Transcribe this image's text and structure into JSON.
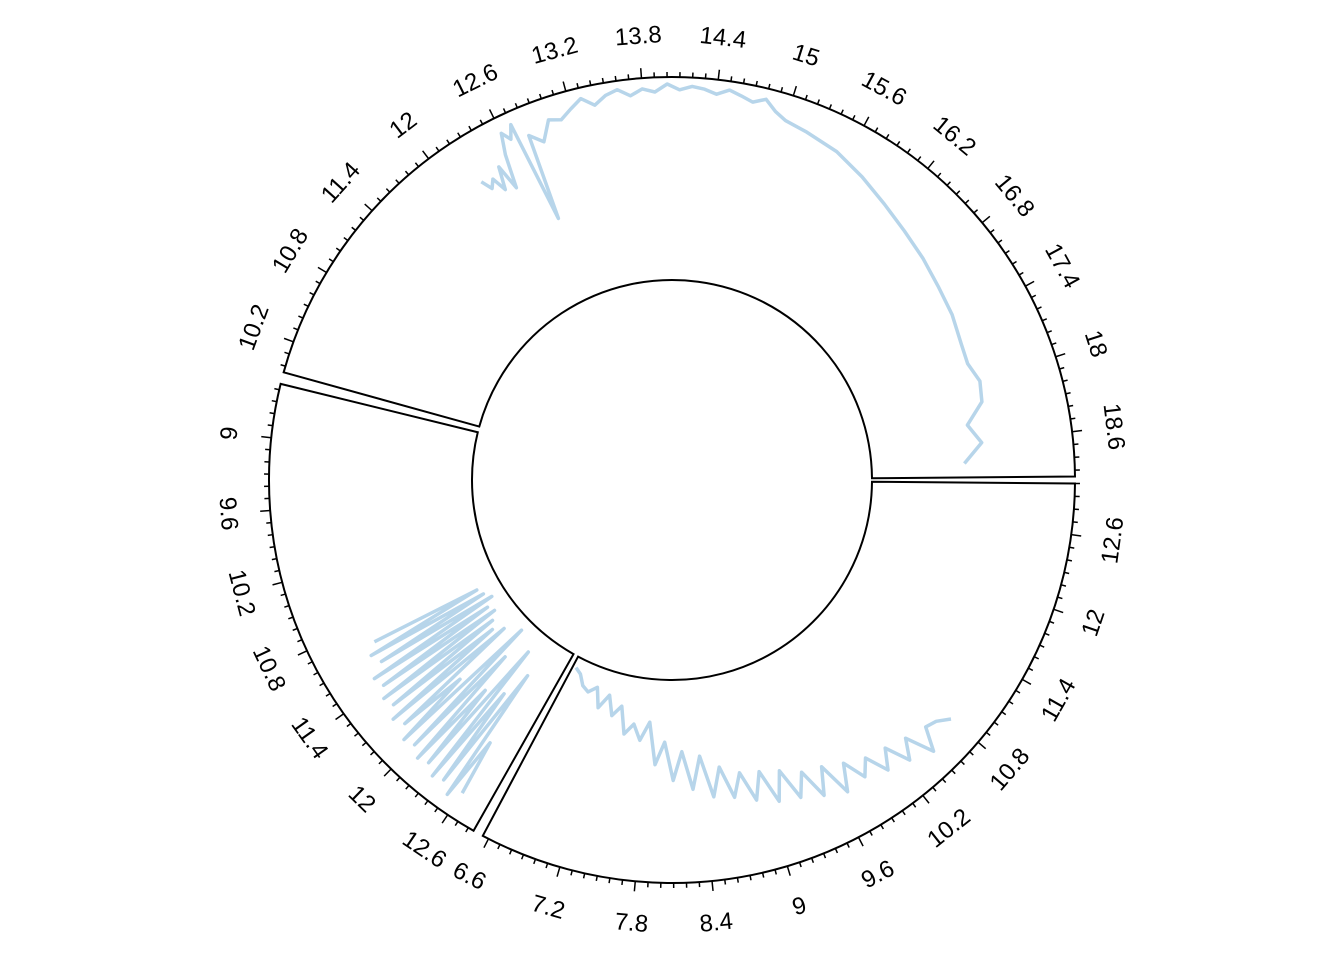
{
  "chart_data": {
    "type": "circos-line",
    "title": "",
    "grid": false,
    "legend": "none",
    "colors": {
      "line": "#b7d5ea",
      "border": "#000000",
      "background": "#ffffff"
    },
    "sectors": [
      {
        "name": "",
        "xlim": [
          9.95,
          18.95
        ],
        "direction": "clockwise",
        "tick_labels": [
          "10.2",
          "10.8",
          "11.4",
          "12",
          "12.6",
          "13.2",
          "13.8",
          "14.4",
          "15",
          "15.6",
          "16.2",
          "16.8",
          "17.4",
          "18",
          "18.6"
        ],
        "ylim": [
          0,
          1
        ],
        "x": [
          12.25,
          12.3,
          12.35,
          12.4,
          12.45,
          12.5,
          12.55,
          12.6,
          12.65,
          12.7,
          12.75,
          12.8,
          12.9,
          13.0,
          13.1,
          13.2,
          13.3,
          13.4,
          13.5,
          13.6,
          13.7,
          13.8,
          13.9,
          14.0,
          14.1,
          14.2,
          14.3,
          14.4,
          14.5,
          14.6,
          14.7,
          14.8,
          14.9,
          15.0,
          15.2,
          15.5,
          15.8,
          16.1,
          16.4,
          16.7,
          17.0,
          17.3,
          17.6,
          17.8,
          18.0,
          18.2,
          18.4,
          18.6,
          18.8
        ],
        "y": [
          0.78,
          0.72,
          0.76,
          0.68,
          0.8,
          0.66,
          0.84,
          0.95,
          0.9,
          0.97,
          0.42,
          0.88,
          0.82,
          0.92,
          0.9,
          0.94,
          0.98,
          0.93,
          0.97,
          0.99,
          0.95,
          0.98,
          0.96,
          1.0,
          0.97,
          0.99,
          0.98,
          0.96,
          0.99,
          0.97,
          0.95,
          0.98,
          0.93,
          0.9,
          0.88,
          0.85,
          0.8,
          0.75,
          0.71,
          0.68,
          0.65,
          0.63,
          0.6,
          0.59,
          0.62,
          0.6,
          0.5,
          0.56,
          0.46
        ]
      },
      {
        "name": "",
        "xlim": [
          6.55,
          13.0
        ],
        "direction": "counterclockwise",
        "tick_labels": [
          "6.6",
          "7.2",
          "7.8",
          "8.4",
          "9",
          "9.6",
          "10.2",
          "10.8",
          "11.4",
          "12",
          "12.6"
        ],
        "ylim": [
          0,
          1
        ],
        "x": [
          6.6,
          6.7,
          6.8,
          6.9,
          7.0,
          7.1,
          7.2,
          7.3,
          7.4,
          7.5,
          7.6,
          7.7,
          7.8,
          7.9,
          8.0,
          8.1,
          8.2,
          8.3,
          8.4,
          8.5,
          8.6,
          8.7,
          8.8,
          8.9,
          9.0,
          9.1,
          9.2,
          9.3,
          9.4,
          9.5,
          9.6,
          9.7,
          9.8,
          9.9,
          10.0,
          10.1,
          10.2,
          10.3,
          10.4,
          10.5,
          10.6,
          10.7,
          10.8
        ],
        "y": [
          0.03,
          0.05,
          0.1,
          0.12,
          0.08,
          0.18,
          0.1,
          0.2,
          0.14,
          0.28,
          0.22,
          0.3,
          0.2,
          0.42,
          0.3,
          0.5,
          0.35,
          0.55,
          0.38,
          0.6,
          0.45,
          0.62,
          0.5,
          0.66,
          0.52,
          0.7,
          0.55,
          0.72,
          0.6,
          0.76,
          0.62,
          0.8,
          0.66,
          0.78,
          0.7,
          0.82,
          0.72,
          0.85,
          0.75,
          0.9,
          0.78,
          0.8,
          0.85
        ]
      },
      {
        "name": "",
        "xlim": [
          8.55,
          12.85
        ],
        "direction": "counterclockwise",
        "tick_labels": [
          "9",
          "9.6",
          "10.2",
          "10.8",
          "11.4",
          "12",
          "12.6"
        ],
        "ylim": [
          0,
          1
        ],
        "x": [
          11.0,
          11.05,
          11.1,
          11.15,
          11.2,
          11.25,
          11.3,
          11.35,
          11.4,
          11.45,
          11.5,
          11.55,
          11.6,
          11.65,
          11.7,
          11.75,
          11.8,
          11.85,
          11.9,
          11.95,
          12.0,
          12.05,
          12.1,
          12.15,
          12.2,
          12.25,
          12.3,
          12.35,
          12.4,
          12.45,
          12.5,
          12.55,
          12.6
        ],
        "y": [
          0.7,
          0.1,
          0.75,
          0.08,
          0.72,
          0.05,
          0.8,
          0.1,
          0.78,
          0.08,
          0.82,
          0.12,
          0.8,
          0.15,
          0.85,
          0.1,
          0.82,
          0.45,
          0.88,
          0.04,
          0.86,
          0.2,
          0.9,
          0.4,
          0.88,
          0.1,
          0.92,
          0.35,
          0.9,
          0.2,
          0.95,
          0.6,
          0.9
        ]
      }
    ]
  }
}
